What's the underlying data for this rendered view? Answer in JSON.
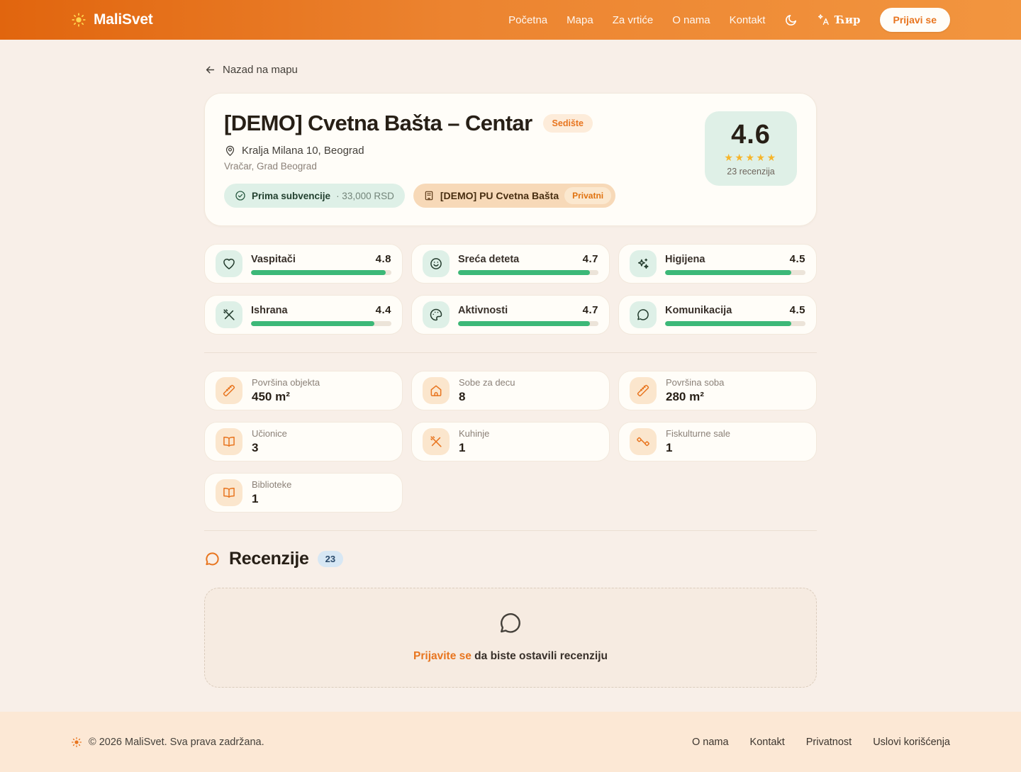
{
  "colors": {
    "brand_orange": "#E8751F",
    "header_gradient_start": "#E1650E",
    "header_gradient_end": "#F2953F",
    "rating_bar_green": "#3CB878",
    "mint_badge_bg": "#DEF0E7",
    "peach_chip_bg": "#FBE6CD",
    "star_yellow": "#F6B52B",
    "page_bg": "#F8EFE8",
    "footer_bg": "#FCE8D5",
    "reviews_count_bg": "#D7E7F4"
  },
  "header": {
    "logo_text": "MaliSvet",
    "nav": [
      "Početna",
      "Mapa",
      "Za vrtiće",
      "O nama",
      "Kontakt"
    ],
    "language_label": "Ћир",
    "signin_label": "Prijavi se"
  },
  "back_link_label": "Nazad na mapu",
  "facility": {
    "title": "[DEMO] Cvetna Bašta – Centar",
    "type_badge": "Sedište",
    "address": "Kralja Milana 10, Beograd",
    "municipality": "Vračar, Grad Beograd",
    "subsidy": {
      "label": "Prima subvencije",
      "amount": "· 33,000 RSD"
    },
    "network": {
      "name": "[DEMO] PU Cvetna Bašta",
      "ownership_badge": "Privatni"
    },
    "rating": {
      "score": "4.6",
      "stars_display": "★★★★★",
      "reviews_label": "23 recenzija"
    }
  },
  "ratings": [
    {
      "label": "Vaspitači",
      "value": 4.8,
      "max": 5,
      "icon": "heart-icon"
    },
    {
      "label": "Sreća deteta",
      "value": 4.7,
      "max": 5,
      "icon": "smile-icon"
    },
    {
      "label": "Higijena",
      "value": 4.5,
      "max": 5,
      "icon": "sparkles-icon"
    },
    {
      "label": "Ishrana",
      "value": 4.4,
      "max": 5,
      "icon": "utensils-icon"
    },
    {
      "label": "Aktivnosti",
      "value": 4.7,
      "max": 5,
      "icon": "palette-icon"
    },
    {
      "label": "Komunikacija",
      "value": 4.5,
      "max": 5,
      "icon": "chat-bubble-icon"
    }
  ],
  "stats": [
    {
      "label": "Površina objekta",
      "value": "450 m²",
      "icon": "ruler-icon"
    },
    {
      "label": "Sobe za decu",
      "value": "8",
      "icon": "home-icon"
    },
    {
      "label": "Površina soba",
      "value": "280 m²",
      "icon": "ruler-icon"
    },
    {
      "label": "Učionice",
      "value": "3",
      "icon": "book-icon"
    },
    {
      "label": "Kuhinje",
      "value": "1",
      "icon": "utensils-icon"
    },
    {
      "label": "Fiskulturne sale",
      "value": "1",
      "icon": "dumbbell-icon"
    },
    {
      "label": "Biblioteke",
      "value": "1",
      "icon": "book-icon"
    }
  ],
  "reviews": {
    "heading": "Recenzije",
    "count_badge": "23",
    "cta_link_label": "Prijavite se",
    "cta_suffix": " da biste ostavili recenziju"
  },
  "footer": {
    "copyright": "© 2026 MaliSvet. Sva prava zadržana.",
    "links": [
      "O nama",
      "Kontakt",
      "Privatnost",
      "Uslovi korišćenja"
    ]
  }
}
